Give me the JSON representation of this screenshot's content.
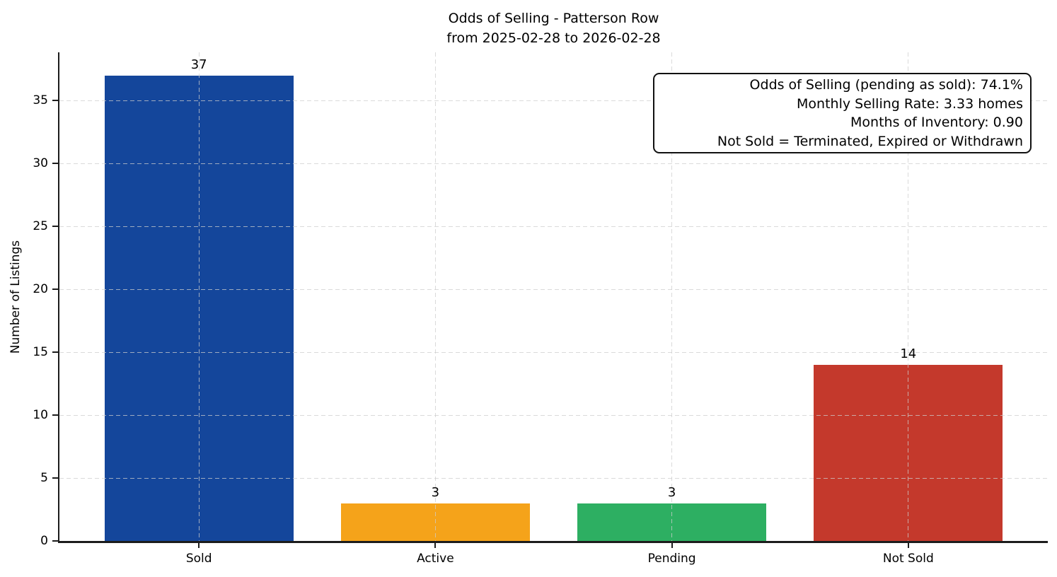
{
  "figure": {
    "title": "Odds of Selling - Patterson Row",
    "subtitle": "from 2025-02-28 to 2026-02-28",
    "ylabel": "Number of Listings"
  },
  "annotation_box": {
    "lines": [
      "Odds of Selling (pending as sold): 74.1%",
      "Monthly Selling Rate: 3.33 homes",
      "Months of Inventory: 0.90",
      "Not Sold = Terminated, Expired or Withdrawn"
    ]
  },
  "chart_data": {
    "type": "bar",
    "title": "Odds of Selling - Patterson Row",
    "subtitle": "from 2025-02-28 to 2026-02-28",
    "categories": [
      "Sold",
      "Active",
      "Pending",
      "Not Sold"
    ],
    "values": [
      37,
      3,
      3,
      14
    ],
    "value_labels": [
      "37",
      "3",
      "3",
      "14"
    ],
    "bar_colors": [
      "#14469b",
      "#f5a31a",
      "#2daf62",
      "#c4392c"
    ],
    "xlabel": "",
    "ylabel": "Number of Listings",
    "yticks": [
      0,
      5,
      10,
      15,
      20,
      25,
      30,
      35
    ],
    "ylim": [
      0,
      38.85
    ],
    "xlim": [
      -0.59,
      3.59
    ],
    "bar_width_fraction": 0.8,
    "grid": {
      "visible": true,
      "style": "dashed",
      "axes": "both",
      "color": "#cdcdcd",
      "drawn_over_bars": true
    },
    "legend": null,
    "annotation": [
      "Odds of Selling (pending as sold): 74.1%",
      "Monthly Selling Rate: 3.33 homes",
      "Months of Inventory: 0.90",
      "Not Sold = Terminated, Expired or Withdrawn"
    ]
  },
  "colors": {
    "background": "#ffffff",
    "axis_spine": "#1c1c1c",
    "text": "#000000",
    "grid": "#cdcdcd",
    "annotation_border": "#111111"
  }
}
